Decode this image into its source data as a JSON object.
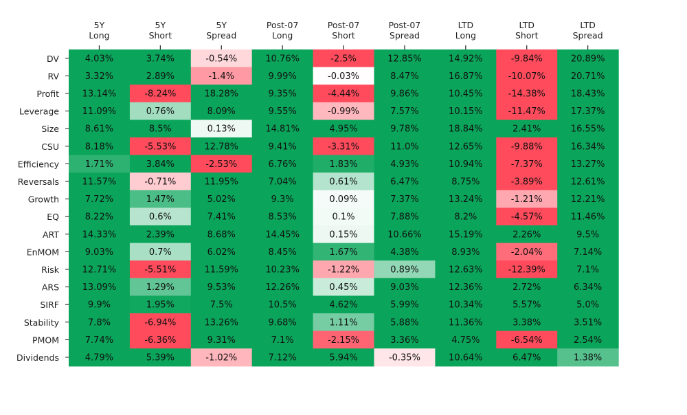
{
  "chart_data": {
    "type": "heatmap",
    "columns": [
      "5Y\nLong",
      "5Y\nShort",
      "5Y\nSpread",
      "Post-07\nLong",
      "Post-07\nShort",
      "Post-07\nSpread",
      "LTD\nLong",
      "LTD\nShort",
      "LTD\nSpread"
    ],
    "rows": [
      "DV",
      "RV",
      "Profit",
      "Leverage",
      "Size",
      "CSU",
      "Efficiency",
      "Reversals",
      "Growth",
      "EQ",
      "ART",
      "EnMOM",
      "Risk",
      "ARS",
      "SIRF",
      "Stability",
      "PMOM",
      "Dividends"
    ],
    "values": [
      [
        4.03,
        3.74,
        -0.54,
        10.76,
        -2.5,
        12.85,
        14.92,
        -9.84,
        20.89
      ],
      [
        3.32,
        2.89,
        -1.4,
        9.99,
        -0.03,
        8.47,
        16.87,
        -10.07,
        20.71
      ],
      [
        13.14,
        -8.24,
        18.28,
        9.35,
        -4.44,
        9.86,
        10.45,
        -14.38,
        18.43
      ],
      [
        11.09,
        0.76,
        8.09,
        9.55,
        -0.99,
        7.57,
        10.15,
        -11.47,
        17.37
      ],
      [
        8.61,
        8.5,
        0.13,
        14.81,
        4.95,
        9.78,
        18.84,
        2.41,
        16.55
      ],
      [
        8.18,
        -5.53,
        12.78,
        9.41,
        -3.31,
        11.0,
        12.65,
        -9.88,
        16.34
      ],
      [
        1.71,
        3.84,
        -2.53,
        6.76,
        1.83,
        4.93,
        10.94,
        -7.37,
        13.27
      ],
      [
        11.57,
        -0.71,
        11.95,
        7.04,
        0.61,
        6.47,
        8.75,
        -3.89,
        12.61
      ],
      [
        7.72,
        1.47,
        5.02,
        9.3,
        0.09,
        7.37,
        13.24,
        -1.21,
        12.21
      ],
      [
        8.22,
        0.6,
        7.41,
        8.53,
        0.1,
        7.88,
        8.2,
        -4.57,
        11.46
      ],
      [
        14.33,
        2.39,
        8.68,
        14.45,
        0.15,
        10.66,
        15.19,
        2.26,
        9.5
      ],
      [
        9.03,
        0.7,
        6.02,
        8.45,
        1.67,
        4.38,
        8.93,
        -2.04,
        7.14
      ],
      [
        12.71,
        -5.51,
        11.59,
        10.23,
        -1.22,
        0.89,
        12.63,
        -12.39,
        7.1
      ],
      [
        13.09,
        1.29,
        9.53,
        12.26,
        0.45,
        9.03,
        12.36,
        2.72,
        6.34
      ],
      [
        9.9,
        1.95,
        7.5,
        10.5,
        4.62,
        5.99,
        10.34,
        5.57,
        5.0
      ],
      [
        7.8,
        -6.94,
        13.26,
        9.68,
        1.11,
        5.88,
        11.36,
        3.38,
        3.51
      ],
      [
        7.74,
        -6.36,
        9.31,
        7.1,
        -2.15,
        3.36,
        4.75,
        -6.54,
        2.54
      ],
      [
        4.79,
        5.39,
        -1.02,
        7.12,
        5.94,
        -0.35,
        10.64,
        6.47,
        1.38
      ]
    ],
    "labels": [
      [
        "4.03%",
        "3.74%",
        "-0.54%",
        "10.76%",
        "-2.5%",
        "12.85%",
        "14.92%",
        "-9.84%",
        "20.89%"
      ],
      [
        "3.32%",
        "2.89%",
        "-1.4%",
        "9.99%",
        "-0.03%",
        "8.47%",
        "16.87%",
        "-10.07%",
        "20.71%"
      ],
      [
        "13.14%",
        "-8.24%",
        "18.28%",
        "9.35%",
        "-4.44%",
        "9.86%",
        "10.45%",
        "-14.38%",
        "18.43%"
      ],
      [
        "11.09%",
        "0.76%",
        "8.09%",
        "9.55%",
        "-0.99%",
        "7.57%",
        "10.15%",
        "-11.47%",
        "17.37%"
      ],
      [
        "8.61%",
        "8.5%",
        "0.13%",
        "14.81%",
        "4.95%",
        "9.78%",
        "18.84%",
        "2.41%",
        "16.55%"
      ],
      [
        "8.18%",
        "-5.53%",
        "12.78%",
        "9.41%",
        "-3.31%",
        "11.0%",
        "12.65%",
        "-9.88%",
        "16.34%"
      ],
      [
        "1.71%",
        "3.84%",
        "-2.53%",
        "6.76%",
        "1.83%",
        "4.93%",
        "10.94%",
        "-7.37%",
        "13.27%"
      ],
      [
        "11.57%",
        "-0.71%",
        "11.95%",
        "7.04%",
        "0.61%",
        "6.47%",
        "8.75%",
        "-3.89%",
        "12.61%"
      ],
      [
        "7.72%",
        "1.47%",
        "5.02%",
        "9.3%",
        "0.09%",
        "7.37%",
        "13.24%",
        "-1.21%",
        "12.21%"
      ],
      [
        "8.22%",
        "0.6%",
        "7.41%",
        "8.53%",
        "0.1%",
        "7.88%",
        "8.2%",
        "-4.57%",
        "11.46%"
      ],
      [
        "14.33%",
        "2.39%",
        "8.68%",
        "14.45%",
        "0.15%",
        "10.66%",
        "15.19%",
        "2.26%",
        "9.5%"
      ],
      [
        "9.03%",
        "0.7%",
        "6.02%",
        "8.45%",
        "1.67%",
        "4.38%",
        "8.93%",
        "-2.04%",
        "7.14%"
      ],
      [
        "12.71%",
        "-5.51%",
        "11.59%",
        "10.23%",
        "-1.22%",
        "0.89%",
        "12.63%",
        "-12.39%",
        "7.1%"
      ],
      [
        "13.09%",
        "1.29%",
        "9.53%",
        "12.26%",
        "0.45%",
        "9.03%",
        "12.36%",
        "2.72%",
        "6.34%"
      ],
      [
        "9.9%",
        "1.95%",
        "7.5%",
        "10.5%",
        "4.62%",
        "5.99%",
        "10.34%",
        "5.57%",
        "5.0%"
      ],
      [
        "7.8%",
        "-6.94%",
        "13.26%",
        "9.68%",
        "1.11%",
        "5.88%",
        "11.36%",
        "3.38%",
        "3.51%"
      ],
      [
        "7.74%",
        "-6.36%",
        "9.31%",
        "7.1%",
        "-2.15%",
        "3.36%",
        "4.75%",
        "-6.54%",
        "2.54%"
      ],
      [
        "4.79%",
        "5.39%",
        "-1.02%",
        "7.12%",
        "5.94%",
        "-0.35%",
        "10.64%",
        "6.47%",
        "1.38%"
      ]
    ],
    "color_scale": {
      "negative_color": "#ff4b5c",
      "positive_color": "#0aa55a",
      "neutral_color": "#ffffff",
      "negative_saturation_at": -2.5,
      "positive_saturation_at": 2.0
    },
    "x_tick_position": "top",
    "grid": false,
    "legend": "none",
    "title": "",
    "xlabel": "",
    "ylabel": ""
  }
}
